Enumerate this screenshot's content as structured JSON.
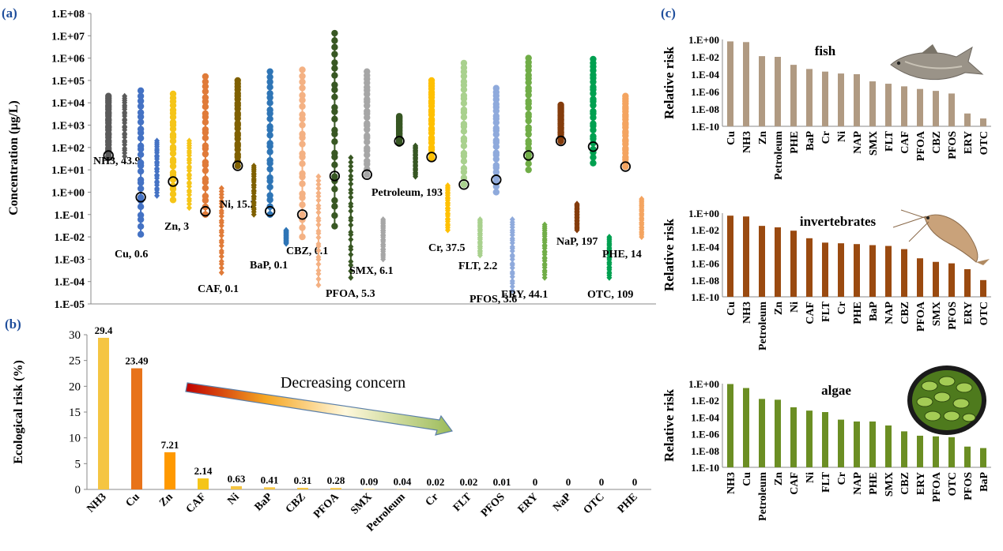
{
  "panels": {
    "a": {
      "label": "(a)"
    },
    "b": {
      "label": "(b)"
    },
    "c": {
      "label": "(c)"
    }
  },
  "chart_data": [
    {
      "id": "a",
      "type": "scatter",
      "scale": "log",
      "ylabel": "Concentration (μg/L)",
      "ylim": [
        1e-05,
        100000000.0
      ],
      "yticks": [
        "1.E-05",
        "1.E-04",
        "1.E-03",
        "1.E-02",
        "1.E-01",
        "1.E+00",
        "1.E+01",
        "1.E+02",
        "1.E+03",
        "1.E+04",
        "1.E+05",
        "1.E+06",
        "1.E+07",
        "1.E+08"
      ],
      "legend": "none",
      "grid": false,
      "series": [
        {
          "name": "NH3",
          "label": "NH3, 43.9",
          "color": "#5a5a5a",
          "marker": "circle",
          "min": 40,
          "max": 20000,
          "median": 43.9
        },
        {
          "name": "NH3-tox",
          "color": "#5a5a5a",
          "marker": "diamond",
          "min": 40,
          "max": 20000
        },
        {
          "name": "Cu",
          "label": "Cu, 0.6",
          "color": "#4472c4",
          "marker": "circle",
          "min": 0.013,
          "max": 35000,
          "median": 0.6
        },
        {
          "name": "Cu-tox",
          "color": "#4472c4",
          "marker": "diamond",
          "min": 0.7,
          "max": 200
        },
        {
          "name": "Zn",
          "label": "Zn, 3",
          "color": "#f5c518",
          "marker": "circle",
          "min": 0.45,
          "max": 25000,
          "median": 3
        },
        {
          "name": "Zn-tox",
          "color": "#f5c518",
          "marker": "diamond",
          "min": 0.2,
          "max": 200
        },
        {
          "name": "CAF",
          "label": "CAF, 0.1",
          "color": "#e07b39",
          "marker": "circle",
          "min": 0.1,
          "max": 150000,
          "median": 0.14
        },
        {
          "name": "CAF-tox",
          "color": "#e07b39",
          "marker": "diamond",
          "min": 0.00025,
          "max": 1.5
        },
        {
          "name": "Ni",
          "label": "Ni, 15.2",
          "color": "#7f6000",
          "marker": "circle",
          "min": 15,
          "max": 100000,
          "median": 15.2
        },
        {
          "name": "Ni-tox",
          "color": "#7f6000",
          "marker": "diamond",
          "min": 0.1,
          "max": 15
        },
        {
          "name": "BaP",
          "label": "BaP, 0.1",
          "color": "#2e75b6",
          "marker": "circle",
          "min": 0.1,
          "max": 250000,
          "median": 0.14
        },
        {
          "name": "BaP-tox",
          "color": "#2e75b6",
          "marker": "diamond",
          "min": 0.005,
          "max": 0.02
        },
        {
          "name": "CBZ",
          "label": "CBZ, 0.1",
          "color": "#f4b183",
          "marker": "circle",
          "min": 0.01,
          "max": 300000,
          "median": 0.1
        },
        {
          "name": "CBZ-tox",
          "color": "#f4b183",
          "marker": "diamond",
          "min": 7e-05,
          "max": 5
        },
        {
          "name": "PFOA",
          "label": "PFOA, 5.3",
          "color": "#385723",
          "marker": "circle",
          "min": 0.03,
          "max": 13000000,
          "median": 5.3
        },
        {
          "name": "PFOA-tox",
          "color": "#385723",
          "marker": "diamond",
          "min": 0.00015,
          "max": 35
        },
        {
          "name": "SMX",
          "label": "SMX, 6.1",
          "color": "#a6a6a6",
          "marker": "circle",
          "min": 6,
          "max": 250000,
          "median": 6.1
        },
        {
          "name": "SMX-tox",
          "color": "#a6a6a6",
          "marker": "diamond",
          "min": 0.001,
          "max": 0.06
        },
        {
          "name": "Petroleum",
          "label": "Petroleum, 193",
          "color": "#375623",
          "marker": "circle",
          "min": 150,
          "max": 2500,
          "median": 193
        },
        {
          "name": "Petroleum-tox",
          "color": "#375623",
          "marker": "diamond",
          "min": 5,
          "max": 120
        },
        {
          "name": "Cr",
          "label": "Cr, 37.5",
          "color": "#ffc000",
          "marker": "circle",
          "min": 35,
          "max": 100000,
          "median": 37.5
        },
        {
          "name": "Cr-tox",
          "color": "#ffc000",
          "marker": "diamond",
          "min": 0.02,
          "max": 2
        },
        {
          "name": "FLT",
          "label": "FLT, 2.2",
          "color": "#a9d18e",
          "marker": "circle",
          "min": 2.2,
          "max": 600000,
          "median": 2.2
        },
        {
          "name": "FLT-tox",
          "color": "#a9d18e",
          "marker": "diamond",
          "min": 0.0015,
          "max": 0.06
        },
        {
          "name": "PFOS",
          "label": "PFOS, 3.6",
          "color": "#8faadc",
          "marker": "circle",
          "min": 1,
          "max": 45000,
          "median": 3.6
        },
        {
          "name": "PFOS-tox",
          "color": "#8faadc",
          "marker": "diamond",
          "min": 4e-05,
          "max": 0.06
        },
        {
          "name": "ERY",
          "label": "ERY, 44.1",
          "color": "#70ad47",
          "marker": "circle",
          "min": 10,
          "max": 1000000,
          "median": 44.1
        },
        {
          "name": "ERY-tox",
          "color": "#70ad47",
          "marker": "diamond",
          "min": 0.00015,
          "max": 0.035
        },
        {
          "name": "NaP",
          "label": "NaP, 197",
          "color": "#843c0c",
          "marker": "circle",
          "min": 190,
          "max": 8000,
          "median": 197
        },
        {
          "name": "NaP-tox",
          "color": "#843c0c",
          "marker": "diamond",
          "min": 0.02,
          "max": 0.3
        },
        {
          "name": "OTC",
          "label": "OTC, 109",
          "color": "#00a050",
          "marker": "circle",
          "min": 20,
          "max": 900000,
          "median": 109
        },
        {
          "name": "OTC-tox",
          "color": "#00a050",
          "marker": "diamond",
          "min": 0.00015,
          "max": 0.01
        },
        {
          "name": "PHE",
          "label": "PHE, 14",
          "color": "#f4a460",
          "marker": "circle",
          "min": 14,
          "max": 20000,
          "median": 14
        },
        {
          "name": "PHE-tox",
          "color": "#f4a460",
          "marker": "diamond",
          "min": 0.01,
          "max": 0.5
        }
      ]
    },
    {
      "id": "b",
      "type": "bar",
      "ylabel": "Ecological risk (%)",
      "ylim": [
        0,
        30
      ],
      "yticks": [
        0,
        5,
        10,
        15,
        20,
        25,
        30
      ],
      "categories": [
        "NH3",
        "Cu",
        "Zn",
        "CAF",
        "Ni",
        "BaP",
        "CBZ",
        "PFOA",
        "SMX",
        "Petroleum",
        "Cr",
        "FLT",
        "PFOS",
        "ERY",
        "NaP",
        "OTC",
        "PHE"
      ],
      "values": [
        29.4,
        23.49,
        7.21,
        2.14,
        0.63,
        0.41,
        0.31,
        0.28,
        0.09,
        0.04,
        0.02,
        0.02,
        0.01,
        0,
        0,
        0,
        0
      ],
      "value_labels": [
        "29.4",
        "23.49",
        "7.21",
        "2.14",
        "0.63",
        "0.41",
        "0.31",
        "0.28",
        "0.09",
        "0.04",
        "0.02",
        "0.02",
        "0.01",
        "0",
        "0",
        "0",
        "0"
      ],
      "colors": [
        "#f5c542",
        "#e8731a",
        "#ff9900",
        "#f5c518",
        "#f5c542",
        "#f5c542",
        "#f5c542",
        "#f5c542",
        "#f5c542",
        "#f5c542",
        "#f5c542",
        "#f5c542",
        "#f5c542",
        "#f5c542",
        "#f5c542",
        "#f5c542",
        "#f5c542"
      ],
      "annotation": "Decreasing concern"
    },
    {
      "id": "c-fish",
      "type": "bar",
      "scale": "log",
      "title": "fish",
      "ylabel": "Relative risk",
      "ylim": [
        1e-10,
        1
      ],
      "yticks": [
        "1.E+00",
        "1.E-02",
        "1.E-04",
        "1.E-06",
        "1.E-08",
        "1.E-10"
      ],
      "color": "#b09a82",
      "categories": [
        "Cu",
        "NH3",
        "Zn",
        "Petroleum",
        "PHE",
        "BaP",
        "Cr",
        "Ni",
        "NAP",
        "SMX",
        "FLT",
        "CAF",
        "PFOA",
        "CBZ",
        "PFOS",
        "ERY",
        "OTC"
      ],
      "values": [
        0.6,
        0.5,
        0.012,
        0.01,
        0.0012,
        0.0004,
        0.0002,
        0.00012,
        0.0001,
        1.5e-05,
        8e-06,
        4e-06,
        2e-06,
        1.2e-06,
        6e-07,
        3e-09,
        8e-10
      ]
    },
    {
      "id": "c-invertebrates",
      "type": "bar",
      "scale": "log",
      "title": "invertebrates",
      "ylabel": "Relative risk",
      "ylim": [
        1e-10,
        1
      ],
      "yticks": [
        "1.E+00",
        "1.E-02",
        "1.E-04",
        "1.E-06",
        "1.E-08",
        "1.E-10"
      ],
      "color": "#9a4a10",
      "categories": [
        "Cu",
        "NH3",
        "Petroleum",
        "Zn",
        "Ni",
        "CAF",
        "FLT",
        "Cr",
        "PHE",
        "BaP",
        "NAP",
        "CBZ",
        "PFOA",
        "SMX",
        "PFOS",
        "ERY",
        "OTC"
      ],
      "values": [
        0.5,
        0.4,
        0.03,
        0.02,
        0.008,
        0.001,
        0.0003,
        0.00025,
        0.0002,
        0.00015,
        0.00012,
        5e-05,
        4e-06,
        1.5e-06,
        1e-06,
        2e-07,
        1e-08
      ]
    },
    {
      "id": "c-algae",
      "type": "bar",
      "scale": "log",
      "title": "algae",
      "ylabel": "Relative risk",
      "ylim": [
        1e-10,
        1
      ],
      "yticks": [
        "1.E+00",
        "1.E-02",
        "1.E-04",
        "1.E-06",
        "1.E-08",
        "1.E-10"
      ],
      "color": "#6b8e23",
      "categories": [
        "NH3",
        "Cu",
        "Petroleum",
        "Zn",
        "CAF",
        "Ni",
        "FLT",
        "Cr",
        "NAP",
        "PHE",
        "SMX",
        "CBZ",
        "ERY",
        "PFOA",
        "OTC",
        "PFOS",
        "BaP"
      ],
      "values": [
        0.9,
        0.3,
        0.015,
        0.012,
        0.0015,
        0.0006,
        0.0004,
        5e-05,
        3e-05,
        3e-05,
        1e-05,
        2e-06,
        6e-07,
        5e-07,
        4e-07,
        3e-08,
        2e-08
      ]
    }
  ]
}
